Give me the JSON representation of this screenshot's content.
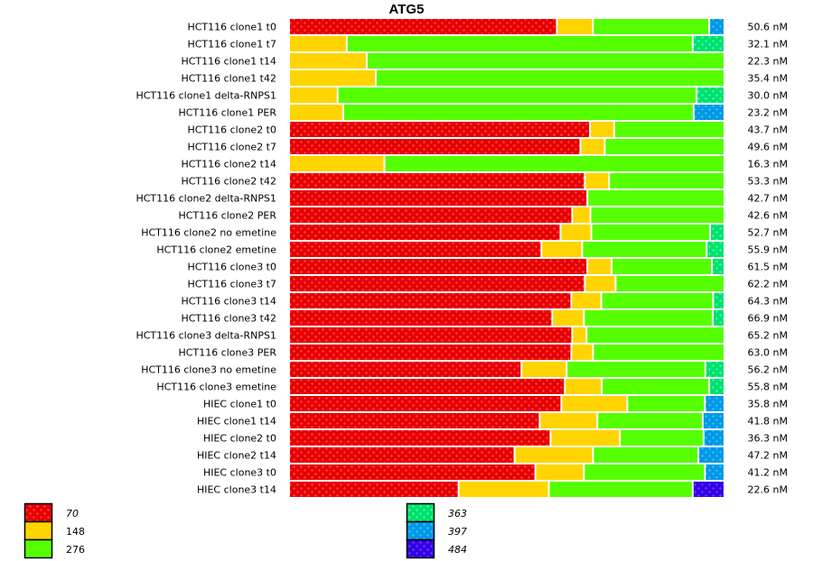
{
  "chart_data": {
    "type": "bar",
    "orientation": "horizontal",
    "stacked": true,
    "normalized": true,
    "title": "ATG5",
    "xlabel": "",
    "ylabel": "",
    "value_unit": "percent of row",
    "legend_position": "bottom",
    "legend": [
      {
        "key": "70",
        "label": "70",
        "color": "#e60000",
        "pattern_color": "#ff3b3b",
        "patterned": true,
        "italic": true
      },
      {
        "key": "148",
        "label": "148",
        "color": "#ffd400",
        "pattern_color": null,
        "patterned": false,
        "italic": false
      },
      {
        "key": "276",
        "label": "276",
        "color": "#55ff00",
        "pattern_color": null,
        "patterned": false,
        "italic": false
      },
      {
        "key": "363",
        "label": "363",
        "color": "#00e070",
        "pattern_color": "#33ff99",
        "patterned": true,
        "italic": true
      },
      {
        "key": "397",
        "label": "397",
        "color": "#0099e6",
        "pattern_color": "#33bbff",
        "patterned": true,
        "italic": true
      },
      {
        "key": "484",
        "label": "484",
        "color": "#3300e6",
        "pattern_color": "#6633ff",
        "patterned": true,
        "italic": true
      }
    ],
    "rows": [
      {
        "label": "HCT116 clone1 t0",
        "total": "50.6 nM",
        "segments": {
          "70": 61.7,
          "148": 8.3,
          "276": 26.8,
          "397": 3.1
        }
      },
      {
        "label": "HCT116 clone1 t7",
        "total": "32.1 nM",
        "segments": {
          "148": 13.3,
          "276": 79.8,
          "363": 6.9
        }
      },
      {
        "label": "HCT116 clone1 t14",
        "total": "22.3 nM",
        "segments": {
          "148": 17.9,
          "276": 82.1
        }
      },
      {
        "label": "HCT116 clone1 t42",
        "total": "35.4 nM",
        "segments": {
          "148": 20.0,
          "276": 80.0
        }
      },
      {
        "label": "HCT116 clone1 delta-RNPS1",
        "total": "30.0 nM",
        "segments": {
          "148": 11.2,
          "276": 82.8,
          "363": 6.0
        }
      },
      {
        "label": "HCT116 clone1 PER",
        "total": "23.2 nM",
        "segments": {
          "148": 12.5,
          "276": 80.8,
          "397": 6.7
        }
      },
      {
        "label": "HCT116 clone2 t0",
        "total": "43.7 nM",
        "segments": {
          "70": 69.4,
          "148": 5.6,
          "276": 25.0
        }
      },
      {
        "label": "HCT116 clone2 t7",
        "total": "49.6 nM",
        "segments": {
          "70": 67.2,
          "148": 5.6,
          "276": 27.2
        }
      },
      {
        "label": "HCT116 clone2 t14",
        "total": "16.3 nM",
        "segments": {
          "148": 22.0,
          "276": 78.0
        }
      },
      {
        "label": "HCT116 clone2 t42",
        "total": "53.3 nM",
        "segments": {
          "70": 68.2,
          "148": 5.6,
          "276": 26.2
        }
      },
      {
        "label": "HCT116 clone2 delta-RNPS1",
        "total": "42.7 nM",
        "segments": {
          "70": 68.8,
          "276": 31.2
        }
      },
      {
        "label": "HCT116 clone2 PER",
        "total": "42.6 nM",
        "segments": {
          "70": 65.3,
          "148": 4.2,
          "276": 30.5
        }
      },
      {
        "label": "HCT116 clone2 no emetine",
        "total": "52.7 nM",
        "segments": {
          "70": 62.6,
          "148": 7.1,
          "276": 27.4,
          "363": 2.9
        }
      },
      {
        "label": "HCT116 clone2 emetine",
        "total": "55.9 nM",
        "segments": {
          "70": 58.2,
          "148": 9.4,
          "276": 28.7,
          "363": 3.7
        }
      },
      {
        "label": "HCT116 clone3 t0",
        "total": "61.5 nM",
        "segments": {
          "70": 68.8,
          "148": 5.6,
          "276": 23.1,
          "363": 2.5
        }
      },
      {
        "label": "HCT116 clone3 t7",
        "total": "62.2 nM",
        "segments": {
          "70": 68.2,
          "148": 7.1,
          "276": 24.7
        }
      },
      {
        "label": "HCT116 clone3 t14",
        "total": "64.3 nM",
        "segments": {
          "70": 65.1,
          "148": 6.9,
          "276": 25.8,
          "363": 2.2
        }
      },
      {
        "label": "HCT116 clone3 t42",
        "total": "66.9 nM",
        "segments": {
          "70": 60.7,
          "148": 7.3,
          "276": 29.7,
          "363": 2.3
        }
      },
      {
        "label": "HCT116 clone3 delta-RNPS1",
        "total": "65.2 nM",
        "segments": {
          "70": 65.3,
          "148": 3.3,
          "276": 31.4
        }
      },
      {
        "label": "HCT116 clone3 PER",
        "total": "63.0 nM",
        "segments": {
          "70": 65.1,
          "148": 5.0,
          "276": 29.9
        }
      },
      {
        "label": "HCT116 clone3 no emetine",
        "total": "56.2 nM",
        "segments": {
          "70": 53.6,
          "148": 10.4,
          "276": 32.0,
          "363": 4.0
        }
      },
      {
        "label": "HCT116 clone3 emetine",
        "total": "55.8 nM",
        "segments": {
          "70": 63.6,
          "148": 8.5,
          "276": 24.8,
          "363": 3.1
        }
      },
      {
        "label": "HIEC clone1 t0",
        "total": "35.8 nM",
        "segments": {
          "70": 62.8,
          "148": 15.2,
          "276": 17.9,
          "397": 4.1
        }
      },
      {
        "label": "HIEC clone1 t14",
        "total": "41.8 nM",
        "segments": {
          "70": 57.8,
          "148": 13.3,
          "276": 24.3,
          "397": 4.6
        }
      },
      {
        "label": "HIEC clone2 t0",
        "total": "36.3 nM",
        "segments": {
          "70": 60.3,
          "148": 16.0,
          "276": 19.3,
          "397": 4.4
        }
      },
      {
        "label": "HIEC clone2 t14",
        "total": "47.2 nM",
        "segments": {
          "70": 52.0,
          "148": 18.1,
          "276": 24.3,
          "397": 5.6
        }
      },
      {
        "label": "HIEC clone3 t0",
        "total": "41.2 nM",
        "segments": {
          "70": 56.8,
          "148": 11.2,
          "276": 27.9,
          "397": 4.1
        }
      },
      {
        "label": "HIEC clone3 t14",
        "total": "22.6 nM",
        "segments": {
          "70": 39.1,
          "148": 20.8,
          "276": 33.2,
          "484": 6.9
        }
      }
    ]
  }
}
